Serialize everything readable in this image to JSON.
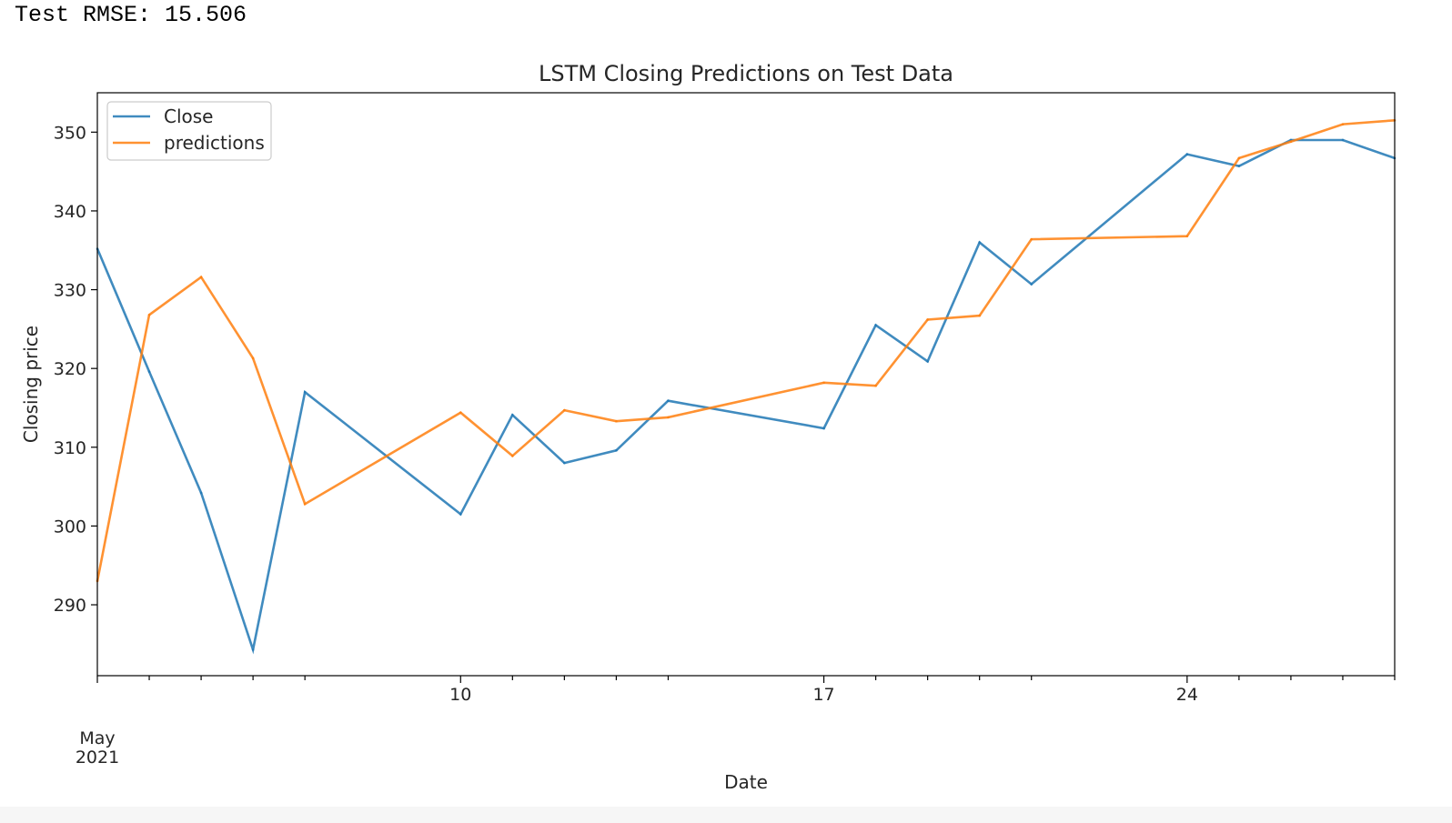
{
  "output": {
    "rmse_text": "Test RMSE: 15.506"
  },
  "chart_data": {
    "type": "line",
    "title": "LSTM Closing Predictions on Test Data",
    "xlabel": "Date",
    "ylabel": "Closing price",
    "x": [
      "2021-05-03",
      "2021-05-04",
      "2021-05-05",
      "2021-05-06",
      "2021-05-07",
      "2021-05-10",
      "2021-05-11",
      "2021-05-12",
      "2021-05-13",
      "2021-05-14",
      "2021-05-17",
      "2021-05-18",
      "2021-05-19",
      "2021-05-20",
      "2021-05-21",
      "2021-05-24",
      "2021-05-25",
      "2021-05-26",
      "2021-05-27",
      "2021-05-28"
    ],
    "series": [
      {
        "name": "Close",
        "color": "#1f77b4",
        "values": [
          335.2,
          319.6,
          304.2,
          284.3,
          317.0,
          301.5,
          314.1,
          308.0,
          309.6,
          315.9,
          312.4,
          325.5,
          320.9,
          336.0,
          330.7,
          347.2,
          345.7,
          349.0,
          349.0,
          346.7
        ]
      },
      {
        "name": "predictions",
        "color": "#ff7f0e",
        "values": [
          293.0,
          326.8,
          331.6,
          321.3,
          302.8,
          314.4,
          308.9,
          314.7,
          313.3,
          313.8,
          318.2,
          317.8,
          326.2,
          326.7,
          336.4,
          336.8,
          346.7,
          348.8,
          351.0,
          351.5
        ]
      }
    ],
    "yticks": [
      290,
      300,
      310,
      320,
      330,
      340,
      350
    ],
    "ylim": [
      281,
      355
    ],
    "xticks": [
      {
        "date": "2021-05-10",
        "label": "10"
      },
      {
        "date": "2021-05-17",
        "label": "17"
      },
      {
        "date": "2021-05-24",
        "label": "24"
      }
    ],
    "x_start_label": [
      "May",
      "2021"
    ],
    "grid": false,
    "legend_position": "upper left"
  }
}
